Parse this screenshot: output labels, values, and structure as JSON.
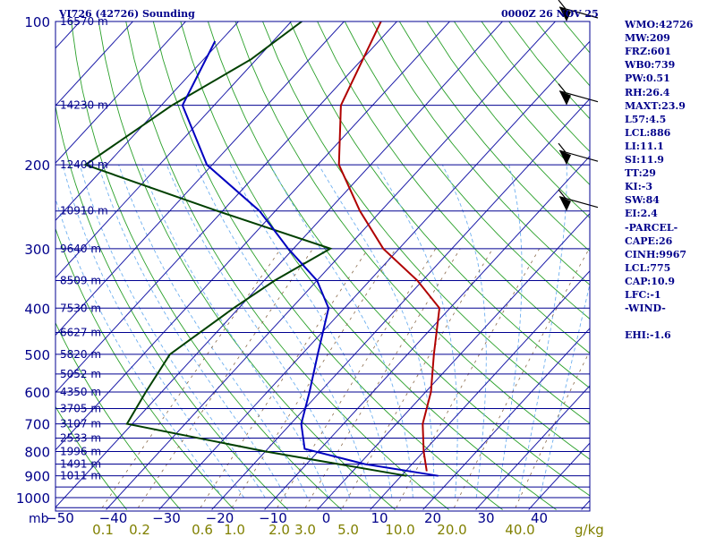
{
  "header": {
    "station": "VI726 (42726) Sounding",
    "time": "0000Z 26 NOV 25"
  },
  "indices": [
    "WMO:42726",
    "MW:209",
    "FRZ:601",
    "WB0:739",
    "PW:0.51",
    "RH:26.4",
    "MAXT:23.9",
    "L57:4.5",
    "LCL:886",
    "LI:11.1",
    "SI:11.9",
    "TT:29",
    "KI:-3",
    "SW:84",
    "EI:2.4",
    "-PARCEL-",
    "CAPE:26",
    "CINH:9967",
    "LCL:775",
    "CAP:10.9",
    "LFC:-1",
    "-WIND-",
    "",
    "EHI:-1.6"
  ],
  "colors": {
    "isobar": "#000090",
    "isotherm": "#1c1ca8",
    "dry_adiabat": "#2aa02a",
    "moist_adiabat": "#6fb0f0",
    "mixing_ratio": "#8a6a4a",
    "temperature": "#b00000",
    "dewpoint": "#004000",
    "wetbulb": "#0000c0",
    "axis_text_temp": "#00008b",
    "axis_text_mix": "#808000"
  },
  "chart_data": {
    "type": "line",
    "title": "VI726 (42726) Sounding",
    "diagram": "skew-T log-p",
    "pressure_unit": "mb",
    "mixing_ratio_unit": "g/kg",
    "ylim": [
      1000,
      100
    ],
    "xlim": [
      -50,
      50
    ],
    "pressure_ticks": [
      100,
      200,
      300,
      400,
      500,
      600,
      700,
      800,
      900,
      1000
    ],
    "temperature_ticks": [
      -50,
      -40,
      -30,
      -20,
      -10,
      0,
      10,
      20,
      30,
      40
    ],
    "mixing_ratio_ticks": [
      "0.1",
      "0.2",
      "0.6",
      "1.0",
      "2.0",
      "3.0",
      "5.0",
      "10.0",
      "20.0",
      "40.0"
    ],
    "height_labels": [
      {
        "p": 100,
        "label": "16570 m"
      },
      {
        "p": 150,
        "label": "14230 m"
      },
      {
        "p": 200,
        "label": "12400 m"
      },
      {
        "p": 250,
        "label": "10910 m"
      },
      {
        "p": 300,
        "label": "9640 m"
      },
      {
        "p": 350,
        "label": "8509 m"
      },
      {
        "p": 400,
        "label": "7530 m"
      },
      {
        "p": 450,
        "label": "6627 m"
      },
      {
        "p": 500,
        "label": "5820 m"
      },
      {
        "p": 550,
        "label": "5052 m"
      },
      {
        "p": 600,
        "label": "4350 m"
      },
      {
        "p": 650,
        "label": "3705 m"
      },
      {
        "p": 700,
        "label": "3107 m"
      },
      {
        "p": 750,
        "label": "2533 m"
      },
      {
        "p": 800,
        "label": "1996 m"
      },
      {
        "p": 850,
        "label": "1491 m"
      },
      {
        "p": 900,
        "label": "1011 m"
      }
    ],
    "series": [
      {
        "name": "Temperature",
        "points": [
          [
            100,
            -73
          ],
          [
            150,
            -66
          ],
          [
            200,
            -56
          ],
          [
            250,
            -44
          ],
          [
            300,
            -33
          ],
          [
            350,
            -21
          ],
          [
            400,
            -12
          ],
          [
            500,
            -5
          ],
          [
            600,
            1
          ],
          [
            700,
            5
          ],
          [
            800,
            10
          ],
          [
            880,
            14
          ]
        ]
      },
      {
        "name": "Dewpoint",
        "points": [
          [
            100,
            -88
          ],
          [
            120,
            -91
          ],
          [
            150,
            -98
          ],
          [
            200,
            -104
          ],
          [
            250,
            -71
          ],
          [
            300,
            -43
          ],
          [
            350,
            -48
          ],
          [
            400,
            -51
          ],
          [
            500,
            -55
          ],
          [
            600,
            -53
          ],
          [
            700,
            -51
          ],
          [
            800,
            -20
          ],
          [
            900,
            11
          ]
        ]
      },
      {
        "name": "Wet-bulb",
        "points": [
          [
            110,
            -101
          ],
          [
            150,
            -96
          ],
          [
            200,
            -81
          ],
          [
            250,
            -63
          ],
          [
            300,
            -51
          ],
          [
            350,
            -40
          ],
          [
            400,
            -33
          ],
          [
            500,
            -27
          ],
          [
            600,
            -22
          ],
          [
            700,
            -18
          ],
          [
            790,
            -13
          ],
          [
            850,
            1
          ],
          [
            900,
            17
          ]
        ]
      }
    ],
    "wind_barbs": [
      {
        "p": 100,
        "label": "barb"
      },
      {
        "p": 150,
        "label": "barb"
      },
      {
        "p": 200,
        "label": "barb"
      },
      {
        "p": 250,
        "label": "barb"
      }
    ]
  }
}
